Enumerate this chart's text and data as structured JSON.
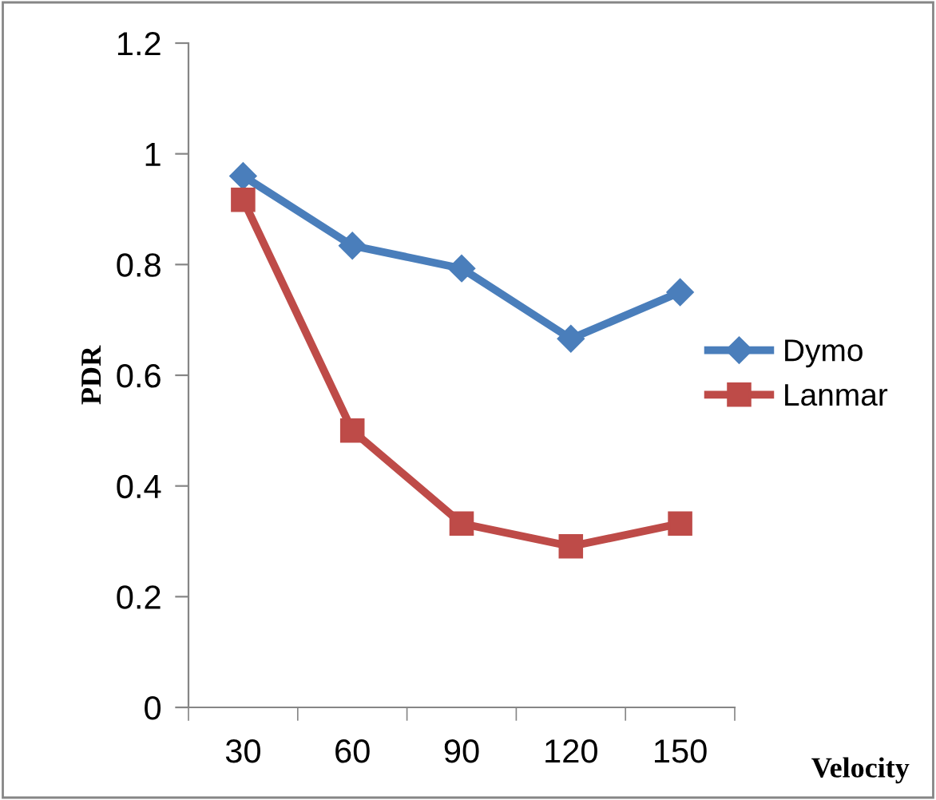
{
  "chart_data": {
    "type": "line",
    "xlabel": "Velocity",
    "ylabel": "PDR",
    "categories": [
      "30",
      "60",
      "90",
      "120",
      "150"
    ],
    "series": [
      {
        "name": "Dymo",
        "color": "#4a7ebb",
        "marker": "diamond",
        "values": [
          0.96,
          0.834,
          0.793,
          0.666,
          0.75
        ]
      },
      {
        "name": "Lanmar",
        "color": "#be4b48",
        "marker": "square",
        "values": [
          0.917,
          0.5,
          0.332,
          0.291,
          0.332
        ]
      }
    ],
    "ylim": [
      0,
      1.2
    ],
    "yticks": [
      0,
      0.2,
      0.4,
      0.6,
      0.8,
      1,
      1.2
    ],
    "grid": false,
    "legend": "right",
    "line_style": "solid"
  }
}
